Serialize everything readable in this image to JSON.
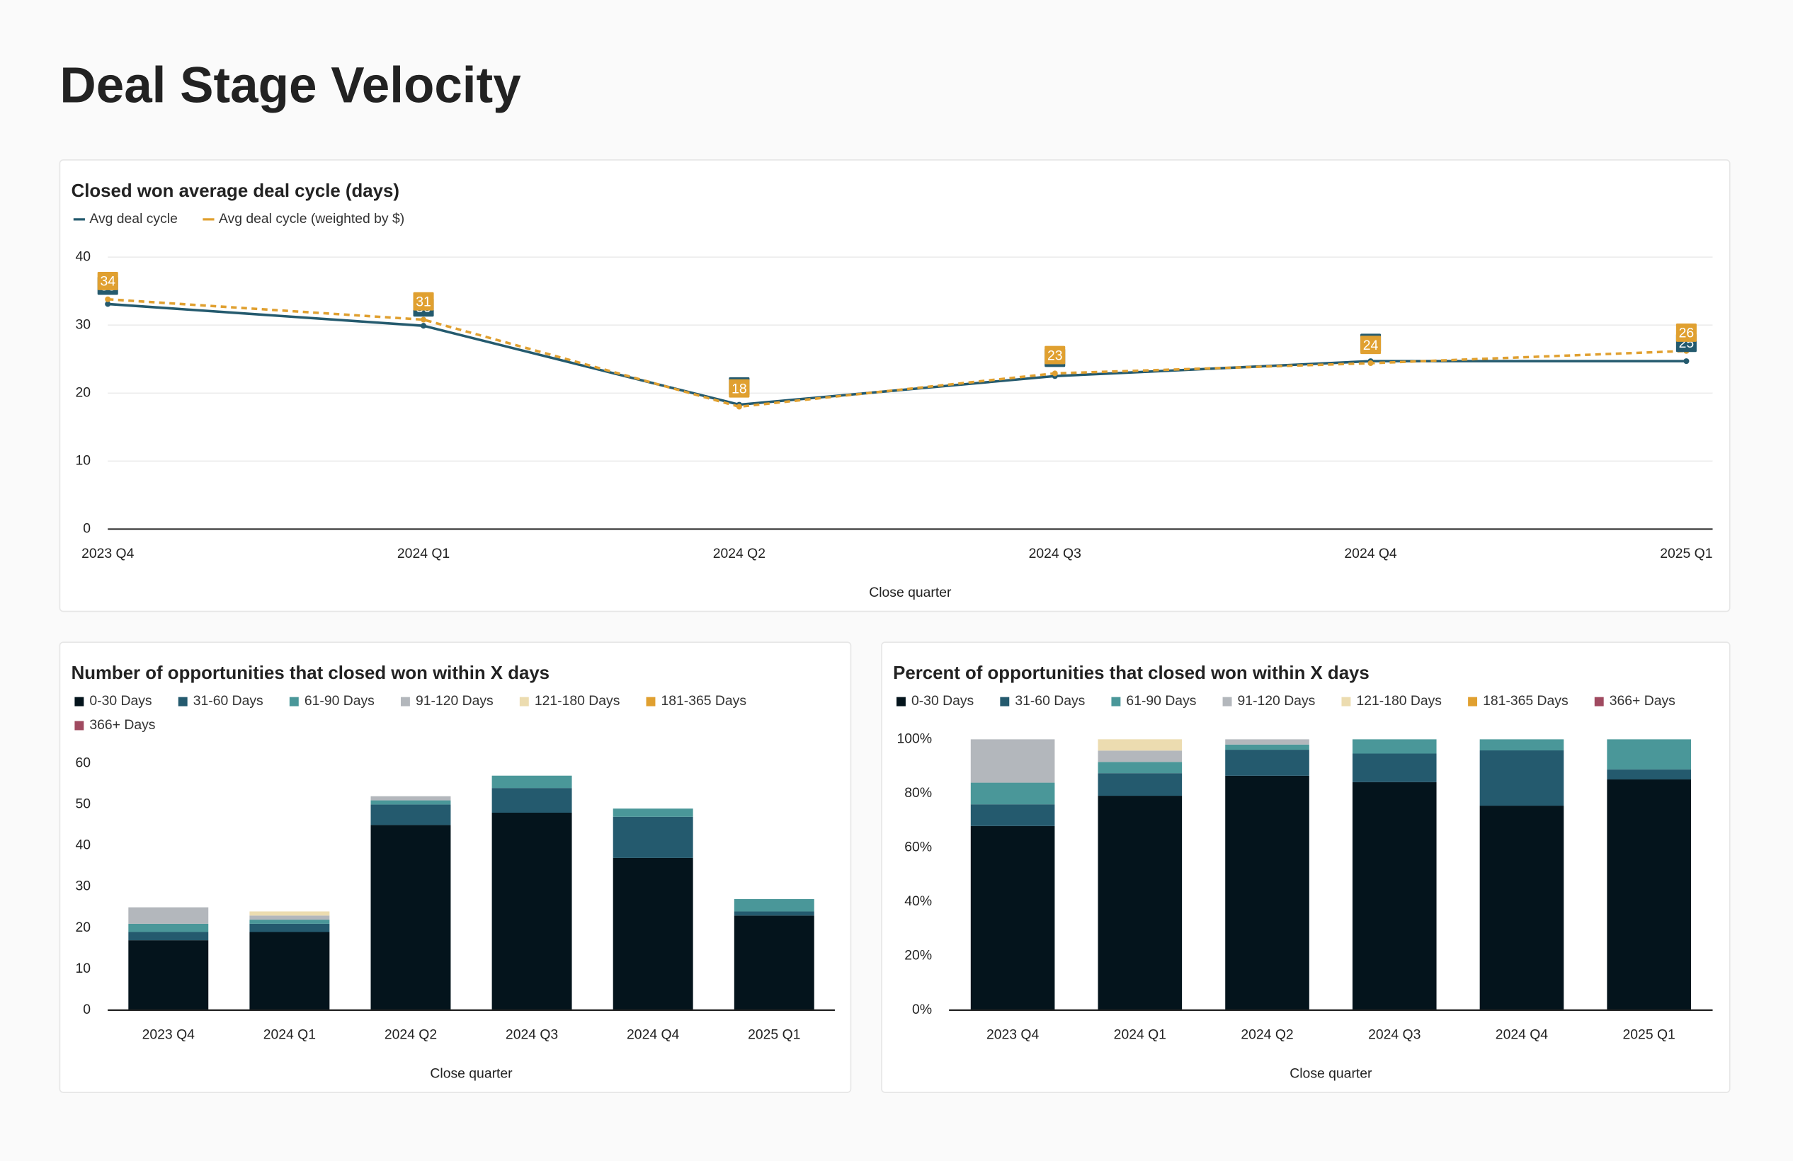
{
  "title": "Deal Stage Velocity",
  "chart_data": [
    {
      "type": "line",
      "title": "Closed won average deal cycle (days)",
      "x_label": "Close quarter",
      "categories": [
        "2023 Q4",
        "2024 Q1",
        "2024 Q2",
        "2024 Q3",
        "2024 Q4",
        "2025 Q1"
      ],
      "series": [
        {
          "name": "Avg deal cycle",
          "color": "#245a6e",
          "dash": false,
          "values": [
            33.1,
            29.9,
            18.3,
            22.5,
            24.7,
            24.7
          ],
          "value_labels": [
            "33",
            "30",
            "18",
            "23",
            "25",
            "25"
          ]
        },
        {
          "name": "Avg deal cycle (weighted by $)",
          "color": "#e0a030",
          "dash": true,
          "values": [
            33.8,
            30.8,
            18.0,
            22.9,
            24.4,
            26.2
          ],
          "value_labels": [
            "34",
            "31",
            "18",
            "23",
            "24",
            "26"
          ]
        }
      ],
      "ylim": [
        0,
        40
      ],
      "yticks": [
        0,
        10,
        20,
        30,
        40
      ],
      "grid": true
    },
    {
      "type": "bar",
      "stacked": true,
      "title": "Number of opportunities that closed won within X days",
      "x_label": "Close quarter",
      "categories": [
        "2023 Q4",
        "2024 Q1",
        "2024 Q2",
        "2024 Q3",
        "2024 Q4",
        "2025 Q1"
      ],
      "series": [
        {
          "name": "0-30 Days",
          "color": "#04141c",
          "values": [
            17,
            19,
            45,
            48,
            37,
            23
          ]
        },
        {
          "name": "31-60 Days",
          "color": "#245a6e",
          "values": [
            2,
            2,
            5,
            6,
            10,
            1
          ]
        },
        {
          "name": "61-90 Days",
          "color": "#4a9799",
          "values": [
            2,
            1,
            1,
            3,
            2,
            3
          ]
        },
        {
          "name": "91-120 Days",
          "color": "#b3b7bc",
          "values": [
            4,
            1,
            1,
            0,
            0,
            0
          ]
        },
        {
          "name": "121-180 Days",
          "color": "#ecdcb0",
          "values": [
            0,
            1,
            0,
            0,
            0,
            0
          ]
        },
        {
          "name": "181-365 Days",
          "color": "#e0a030",
          "values": [
            0,
            0,
            0,
            0,
            0,
            0
          ]
        },
        {
          "name": "366+ Days",
          "color": "#a04a60",
          "values": [
            0,
            0,
            0,
            0,
            0,
            0
          ]
        }
      ],
      "ylim": [
        0,
        60
      ],
      "yticks": [
        0,
        10,
        20,
        30,
        40,
        50,
        60
      ],
      "grid": false
    },
    {
      "type": "bar",
      "stacked": true,
      "title": "Percent of opportunities that closed won within X days",
      "x_label": "Close quarter",
      "categories": [
        "2023 Q4",
        "2024 Q1",
        "2024 Q2",
        "2024 Q3",
        "2024 Q4",
        "2025 Q1"
      ],
      "series": [
        {
          "name": "0-30 Days",
          "color": "#04141c",
          "values": [
            68,
            79.17,
            86.54,
            84.21,
            75.51,
            85.19
          ]
        },
        {
          "name": "31-60 Days",
          "color": "#245a6e",
          "values": [
            8,
            8.33,
            9.62,
            10.53,
            20.41,
            3.7
          ]
        },
        {
          "name": "61-90 Days",
          "color": "#4a9799",
          "values": [
            8,
            4.17,
            1.92,
            5.26,
            4.08,
            11.11
          ]
        },
        {
          "name": "91-120 Days",
          "color": "#b3b7bc",
          "values": [
            16,
            4.17,
            1.92,
            0,
            0,
            0
          ]
        },
        {
          "name": "121-180 Days",
          "color": "#ecdcb0",
          "values": [
            0,
            4.17,
            0,
            0,
            0,
            0
          ]
        },
        {
          "name": "181-365 Days",
          "color": "#e0a030",
          "values": [
            0,
            0,
            0,
            0,
            0,
            0
          ]
        },
        {
          "name": "366+ Days",
          "color": "#a04a60",
          "values": [
            0,
            0,
            0,
            0,
            0,
            0
          ]
        }
      ],
      "ylim": [
        0,
        100
      ],
      "yticks": [
        {
          "value": 0,
          "label": "0%"
        },
        {
          "value": 20,
          "label": "20%"
        },
        {
          "value": 40,
          "label": "40%"
        },
        {
          "value": 60,
          "label": "60%"
        },
        {
          "value": 80,
          "label": "80%"
        },
        {
          "value": 100,
          "label": "100%"
        }
      ],
      "grid": false
    }
  ]
}
